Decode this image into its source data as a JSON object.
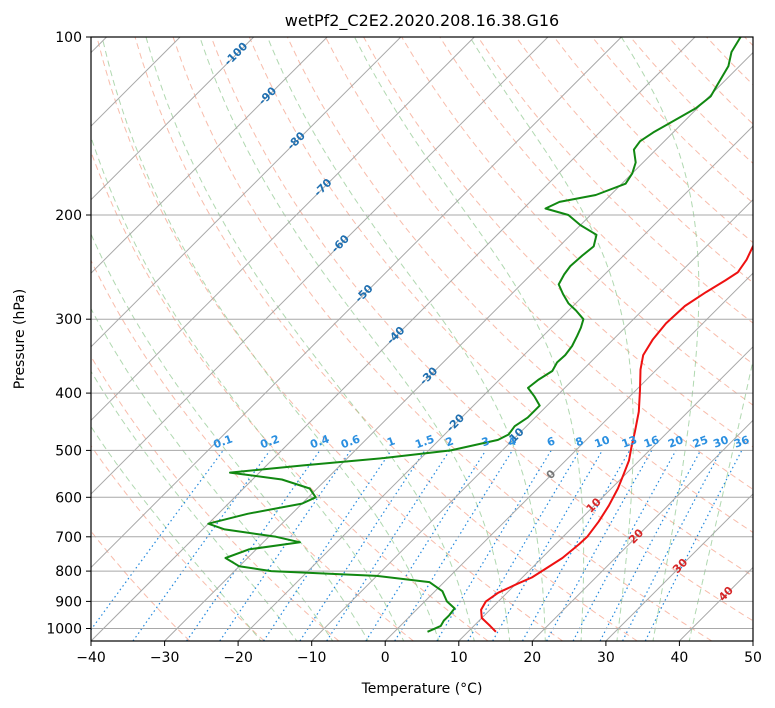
{
  "colors": {
    "temperature": "#ee1111",
    "dewpoint": "#118811",
    "isotherm": "#a8a8a8",
    "isobar": "#a8a8a8",
    "dry_adiabat": "#f5a088",
    "moist_adiabat": "#8ec88e",
    "mixing_ratio": "#2288dd",
    "isotherm_label": "#1f6fb0",
    "mixing_ratio_label": "#2a8fe0",
    "highlight_isotherm_label": "#d62728",
    "zero_label": "#777777"
  },
  "chart_data": {
    "type": "line",
    "chart_kind": "skew-T log-P diagram",
    "title": "wetPf2_C2E2.2020.208.16.38.G16",
    "xlabel": "Temperature (°C)",
    "ylabel": "Pressure (hPa)",
    "xlim": [
      -40,
      50
    ],
    "ylim": [
      1050,
      100
    ],
    "y_scale": "log",
    "grid": true,
    "x_ticks": [
      -40,
      -30,
      -20,
      -10,
      0,
      10,
      20,
      30,
      40,
      50
    ],
    "x_tick_labels": [
      "−40",
      "−30",
      "−20",
      "−10",
      "0",
      "10",
      "20",
      "30",
      "40",
      "50"
    ],
    "y_ticks": [
      1000,
      900,
      800,
      700,
      600,
      500,
      400,
      300,
      200,
      100
    ],
    "y_tick_labels": [
      "1000",
      "900",
      "800",
      "700",
      "600",
      "500",
      "400",
      "300",
      "200",
      "100"
    ],
    "series": [
      {
        "role": "temperature",
        "color": "#ee1111",
        "points": [
          [
            13.8,
            1013
          ],
          [
            12.2,
            990
          ],
          [
            10,
            960
          ],
          [
            8.8,
            930
          ],
          [
            8.3,
            900
          ],
          [
            8.8,
            870
          ],
          [
            10.2,
            840
          ],
          [
            11.3,
            820
          ],
          [
            11.8,
            800
          ],
          [
            12.8,
            760
          ],
          [
            13.2,
            720
          ],
          [
            13.3,
            700
          ],
          [
            12.8,
            660
          ],
          [
            12,
            620
          ],
          [
            10.9,
            580
          ],
          [
            9.8,
            550
          ],
          [
            8.6,
            520
          ],
          [
            7.2,
            495
          ],
          [
            5.5,
            465
          ],
          [
            3.3,
            430
          ],
          [
            0.5,
            395
          ],
          [
            -2.2,
            365
          ],
          [
            -3.8,
            345
          ],
          [
            -4.6,
            325
          ],
          [
            -5,
            305
          ],
          [
            -4.8,
            285
          ],
          [
            -3.8,
            270
          ],
          [
            -2.8,
            258
          ],
          [
            -2.2,
            250
          ],
          [
            -2.7,
            238
          ],
          [
            -3.5,
            228
          ],
          [
            -4.3,
            218
          ],
          [
            -4.4,
            210
          ],
          [
            -4.7,
            200
          ],
          [
            -5.5,
            192
          ],
          [
            -6.8,
            183
          ],
          [
            -7.9,
            173
          ],
          [
            -8.8,
            165
          ],
          [
            -10,
            157
          ],
          [
            -11.3,
            150
          ],
          [
            -11.8,
            146
          ],
          [
            -13.2,
            137
          ],
          [
            -14,
            130
          ],
          [
            -15.1,
            124
          ],
          [
            -15.8,
            118
          ],
          [
            -17.2,
            112
          ],
          [
            -17.4,
            108
          ],
          [
            -17.7,
            104
          ],
          [
            -17.9,
            100
          ]
        ]
      },
      {
        "role": "dewpoint",
        "color": "#118811",
        "points": [
          [
            4.5,
            1013
          ],
          [
            5.5,
            990
          ],
          [
            5.2,
            970
          ],
          [
            5.2,
            950
          ],
          [
            5,
            925
          ],
          [
            3,
            900
          ],
          [
            1,
            865
          ],
          [
            -2,
            835
          ],
          [
            -10,
            815
          ],
          [
            -25,
            800
          ],
          [
            -30,
            785
          ],
          [
            -33,
            760
          ],
          [
            -31,
            735
          ],
          [
            -25,
            715
          ],
          [
            -29,
            700
          ],
          [
            -37,
            680
          ],
          [
            -40,
            665
          ],
          [
            -36,
            640
          ],
          [
            -30,
            615
          ],
          [
            -29,
            600
          ],
          [
            -31,
            580
          ],
          [
            -36,
            560
          ],
          [
            -44,
            545
          ],
          [
            -35,
            530
          ],
          [
            -25,
            515
          ],
          [
            -17,
            500
          ],
          [
            -12,
            480
          ],
          [
            -11.3,
            470
          ],
          [
            -11.6,
            455
          ],
          [
            -11,
            440
          ],
          [
            -11,
            430
          ],
          [
            -11,
            420
          ],
          [
            -13,
            405
          ],
          [
            -15,
            392
          ],
          [
            -14.7,
            380
          ],
          [
            -14,
            367
          ],
          [
            -14.5,
            355
          ],
          [
            -14.4,
            345
          ],
          [
            -14.7,
            333
          ],
          [
            -15.4,
            320
          ],
          [
            -16,
            310
          ],
          [
            -16.8,
            300
          ],
          [
            -19,
            290
          ],
          [
            -21,
            282
          ],
          [
            -23,
            272
          ],
          [
            -24.9,
            262
          ],
          [
            -25.5,
            252
          ],
          [
            -25.8,
            244
          ],
          [
            -25.6,
            234
          ],
          [
            -25.3,
            226
          ],
          [
            -26.5,
            216
          ],
          [
            -30,
            208
          ],
          [
            -33,
            200
          ],
          [
            -37,
            195
          ],
          [
            -36,
            190
          ],
          [
            -32,
            185
          ],
          [
            -29.5,
            177
          ],
          [
            -30,
            170
          ],
          [
            -31,
            163
          ],
          [
            -33,
            155
          ],
          [
            -33.3,
            150
          ],
          [
            -32.7,
            145
          ],
          [
            -31.2,
            137
          ],
          [
            -30.2,
            132
          ],
          [
            -29.8,
            126
          ],
          [
            -30.5,
            120
          ],
          [
            -31.5,
            112
          ],
          [
            -33,
            106
          ],
          [
            -33.8,
            100
          ]
        ]
      }
    ],
    "isotherm_labels": [
      -100,
      -90,
      -80,
      -70,
      -60,
      -50,
      -40,
      -30,
      -20,
      -10
    ],
    "mixing_ratio_labels": [
      "0.1",
      "0.2",
      "0.4",
      "0.6",
      "1",
      "1.5",
      "2",
      "3",
      "4",
      "6",
      "8",
      "10",
      "13",
      "16",
      "20",
      "25",
      "30",
      "36"
    ],
    "lower_isotherm_labels": [
      "0",
      "10",
      "20",
      "30",
      "40"
    ]
  }
}
